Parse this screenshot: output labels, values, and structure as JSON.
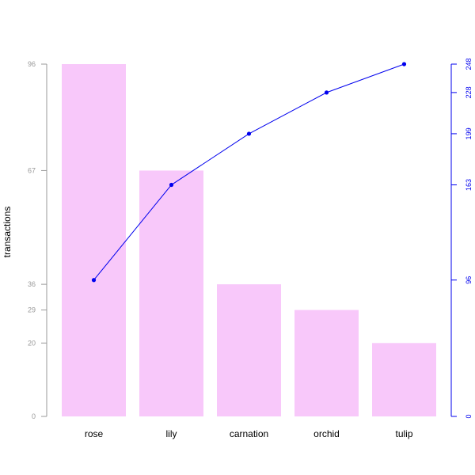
{
  "chart_data": {
    "type": "bar",
    "subtype": "pareto",
    "categories": [
      "rose",
      "lily",
      "carnation",
      "orchid",
      "tulip"
    ],
    "values": [
      96,
      67,
      36,
      29,
      20
    ],
    "cumulative": [
      96,
      163,
      199,
      228,
      248
    ],
    "ylabel": "transactions",
    "left_ticks": [
      0,
      20,
      29,
      36,
      67,
      96
    ],
    "right_ticks": [
      0,
      96,
      163,
      199,
      228,
      248
    ],
    "ylim_left": [
      0,
      96
    ],
    "ylim_right": [
      0,
      248
    ],
    "grid": false,
    "colors": {
      "bar": "#f8c8fa",
      "line": "#0000ee",
      "left_axis": "#999999",
      "right_axis": "#0000ee",
      "category_label": "#000000"
    }
  }
}
